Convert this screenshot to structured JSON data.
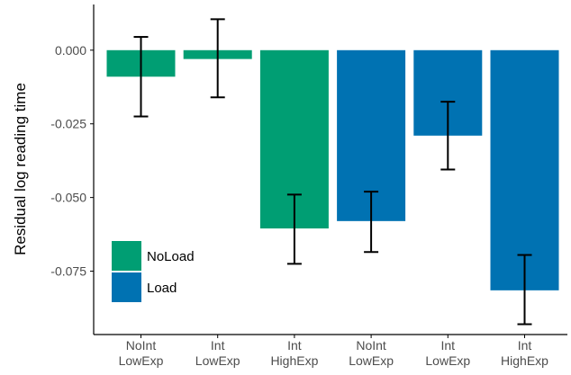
{
  "chart_data": {
    "type": "bar",
    "title": "",
    "xlabel": "",
    "ylabel": "Residual log reading time",
    "categories": [
      [
        "NoInt",
        "LowExp"
      ],
      [
        "Int",
        "LowExp"
      ],
      [
        "Int",
        "HighExp"
      ],
      [
        "NoInt",
        "LowExp"
      ],
      [
        "Int",
        "LowExp"
      ],
      [
        "Int",
        "HighExp"
      ]
    ],
    "series_of_bar": [
      "NoLoad",
      "NoLoad",
      "NoLoad",
      "Load",
      "Load",
      "Load"
    ],
    "series": [
      {
        "name": "NoLoad",
        "color": "#009E73"
      },
      {
        "name": "Load",
        "color": "#0072B2"
      }
    ],
    "values": [
      -0.009,
      -0.003,
      -0.0605,
      -0.058,
      -0.029,
      -0.0815
    ],
    "error_low": [
      -0.0225,
      -0.016,
      -0.0725,
      -0.0685,
      -0.0405,
      -0.093
    ],
    "error_high": [
      0.0045,
      0.0105,
      -0.049,
      -0.048,
      -0.0175,
      -0.0695
    ],
    "yticks": [
      0.0,
      -0.025,
      -0.05,
      -0.075
    ],
    "ytick_labels": [
      "0.000",
      "-0.025",
      "-0.050",
      "-0.075"
    ],
    "ylim": [
      -0.0965,
      0.0155
    ],
    "grid": false,
    "legend_position": "bottom-left inside"
  }
}
